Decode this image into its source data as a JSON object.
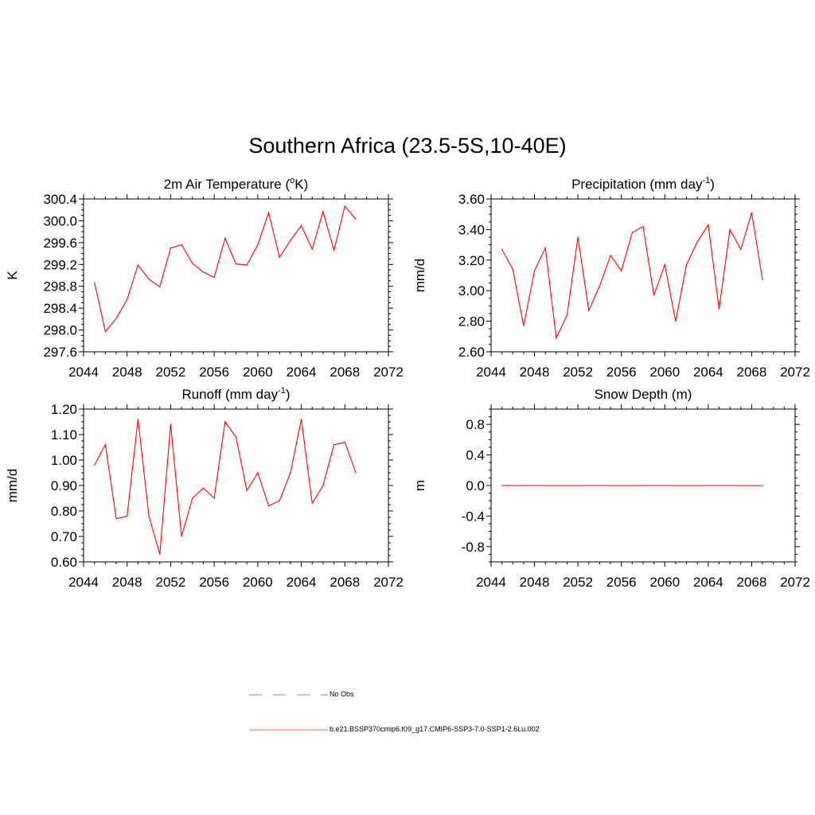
{
  "title": "Southern Africa (23.5-5S,10-40E)",
  "legend": [
    {
      "label": "No Obs",
      "style": "dashed",
      "color": "#aaaaee"
    },
    {
      "label": "b.e21.BSSP370cmip6.f09_g17.CMIP6-SSP3-7.0-SSP1-2.6Lu.002",
      "style": "solid",
      "color": "#ff9999"
    }
  ],
  "chart_data": [
    {
      "type": "line",
      "title": "2m Air Temperature (",
      "title_sup": "o",
      "title_after": "K)",
      "ylabel": "K",
      "xlim": [
        2044,
        2072
      ],
      "xticks": [
        "2044",
        "2048",
        "2052",
        "2056",
        "2060",
        "2064",
        "2068",
        "2072"
      ],
      "ylim": [
        297.6,
        300.4
      ],
      "yticks": [
        "297.6",
        "298.0",
        "298.4",
        "298.8",
        "299.2",
        "299.6",
        "300.0",
        "300.4"
      ],
      "color": "#ff0000",
      "x": [
        2045,
        2046,
        2047,
        2048,
        2049,
        2050,
        2051,
        2052,
        2053,
        2054,
        2055,
        2056,
        2057,
        2058,
        2059,
        2060,
        2061,
        2062,
        2063,
        2064,
        2065,
        2066,
        2067,
        2068,
        2069
      ],
      "values": [
        298.87,
        297.97,
        298.21,
        298.56,
        299.19,
        298.93,
        298.79,
        299.5,
        299.56,
        299.22,
        299.06,
        298.96,
        299.68,
        299.21,
        299.19,
        299.56,
        300.15,
        299.33,
        299.64,
        299.91,
        299.48,
        300.17,
        299.46,
        300.27,
        300.03
      ]
    },
    {
      "type": "line",
      "title": "Precipitation (mm day",
      "title_sup": "-1",
      "title_after": ")",
      "ylabel": "mm/d",
      "xlim": [
        2044,
        2072
      ],
      "xticks": [
        "2044",
        "2048",
        "2052",
        "2056",
        "2060",
        "2064",
        "2068",
        "2072"
      ],
      "ylim": [
        2.6,
        3.6
      ],
      "yticks": [
        "2.60",
        "2.80",
        "3.00",
        "3.20",
        "3.40",
        "3.60"
      ],
      "color": "#ff0000",
      "x": [
        2045,
        2046,
        2047,
        2048,
        2049,
        2050,
        2051,
        2052,
        2053,
        2054,
        2055,
        2056,
        2057,
        2058,
        2059,
        2060,
        2061,
        2062,
        2063,
        2064,
        2065,
        2066,
        2067,
        2068,
        2069
      ],
      "values": [
        3.27,
        3.14,
        2.77,
        3.13,
        3.28,
        2.69,
        2.84,
        3.35,
        2.87,
        3.03,
        3.23,
        3.13,
        3.38,
        3.42,
        2.97,
        3.17,
        2.8,
        3.17,
        3.32,
        3.43,
        2.88,
        3.4,
        3.27,
        3.51,
        3.07
      ]
    },
    {
      "type": "line",
      "title": "Runoff (mm day",
      "title_sup": "-1",
      "title_after": ")",
      "ylabel": "mm/d",
      "xlim": [
        2044,
        2072
      ],
      "xticks": [
        "2044",
        "2048",
        "2052",
        "2056",
        "2060",
        "2064",
        "2068",
        "2072"
      ],
      "ylim": [
        0.6,
        1.2
      ],
      "yticks": [
        "0.60",
        "0.70",
        "0.80",
        "0.90",
        "1.00",
        "1.10",
        "1.20"
      ],
      "color": "#ff0000",
      "x": [
        2045,
        2046,
        2047,
        2048,
        2049,
        2050,
        2051,
        2052,
        2053,
        2054,
        2055,
        2056,
        2057,
        2058,
        2059,
        2060,
        2061,
        2062,
        2063,
        2064,
        2065,
        2066,
        2067,
        2068,
        2069
      ],
      "values": [
        0.98,
        1.06,
        0.77,
        0.78,
        1.16,
        0.78,
        0.63,
        1.14,
        0.7,
        0.85,
        0.89,
        0.85,
        1.15,
        1.09,
        0.88,
        0.95,
        0.82,
        0.84,
        0.95,
        1.16,
        0.83,
        0.9,
        1.06,
        1.07,
        0.95
      ]
    },
    {
      "type": "line",
      "title": "Snow Depth (m)",
      "title_sup": "",
      "title_after": "",
      "ylabel": "m",
      "xlim": [
        2044,
        2072
      ],
      "xticks": [
        "2044",
        "2048",
        "2052",
        "2056",
        "2060",
        "2064",
        "2068",
        "2072"
      ],
      "ylim": [
        -1.0,
        1.0
      ],
      "yticks": [
        "-0.8",
        "-0.4",
        "0.0",
        "0.4",
        "0.8"
      ],
      "color": "#ff0000",
      "x": [
        2045,
        2046,
        2047,
        2048,
        2049,
        2050,
        2051,
        2052,
        2053,
        2054,
        2055,
        2056,
        2057,
        2058,
        2059,
        2060,
        2061,
        2062,
        2063,
        2064,
        2065,
        2066,
        2067,
        2068,
        2069
      ],
      "values": [
        0,
        0,
        0,
        0,
        0,
        0,
        0,
        0,
        0,
        0,
        0,
        0,
        0,
        0,
        0,
        0,
        0,
        0,
        0,
        0,
        0,
        0,
        0,
        0,
        0
      ]
    }
  ]
}
